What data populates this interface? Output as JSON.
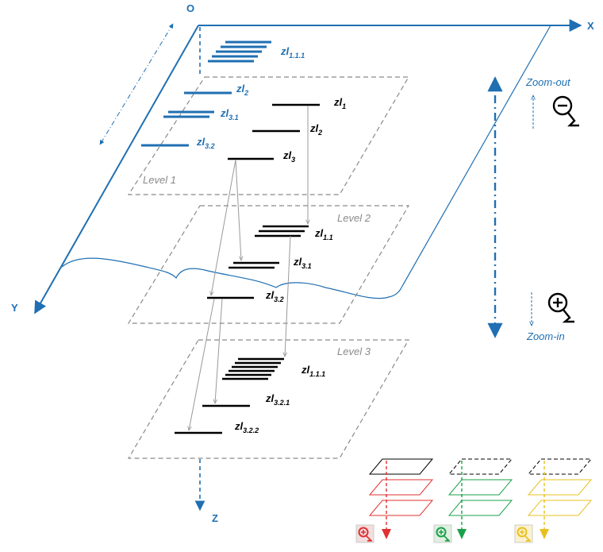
{
  "axes": {
    "origin": "O",
    "x": "X",
    "y": "Y",
    "z": "Z"
  },
  "levels": {
    "level1": "Level 1",
    "level2": "Level 2",
    "level3": "Level 3"
  },
  "zoom": {
    "out": "Zoom-out",
    "in": "Zoom-in"
  },
  "labels": {
    "zl111_top": {
      "main": "zl",
      "sub": "1.1.1"
    },
    "zl2_blue": {
      "main": "zl",
      "sub": "2"
    },
    "zl31_blue": {
      "main": "zl",
      "sub": "3.1"
    },
    "zl32_blue": {
      "main": "zl",
      "sub": "3.2"
    },
    "zl1_l1": {
      "main": "zl",
      "sub": "1"
    },
    "zl2_l1": {
      "main": "zl",
      "sub": "2"
    },
    "zl3_l1": {
      "main": "zl",
      "sub": "3"
    },
    "zl11_l2": {
      "main": "zl",
      "sub": "1.1"
    },
    "zl31_l2": {
      "main": "zl",
      "sub": "3.1"
    },
    "zl32_l2": {
      "main": "zl",
      "sub": "3.2"
    },
    "zl111_l3": {
      "main": "zl",
      "sub": "1.1.1"
    },
    "zl321_l3": {
      "main": "zl",
      "sub": "3.2.1"
    },
    "zl322_l3": {
      "main": "zl",
      "sub": "3.2.2"
    }
  },
  "colors": {
    "accent": "#1f6fb2",
    "level_outline": "#8a8a8a",
    "legend_red": "#e03030",
    "legend_green": "#1aa04a",
    "legend_yellow": "#e8c020"
  },
  "legend_icons": [
    "zoom-in-red-icon",
    "zoom-in-green-icon",
    "zoom-in-yellow-icon"
  ]
}
